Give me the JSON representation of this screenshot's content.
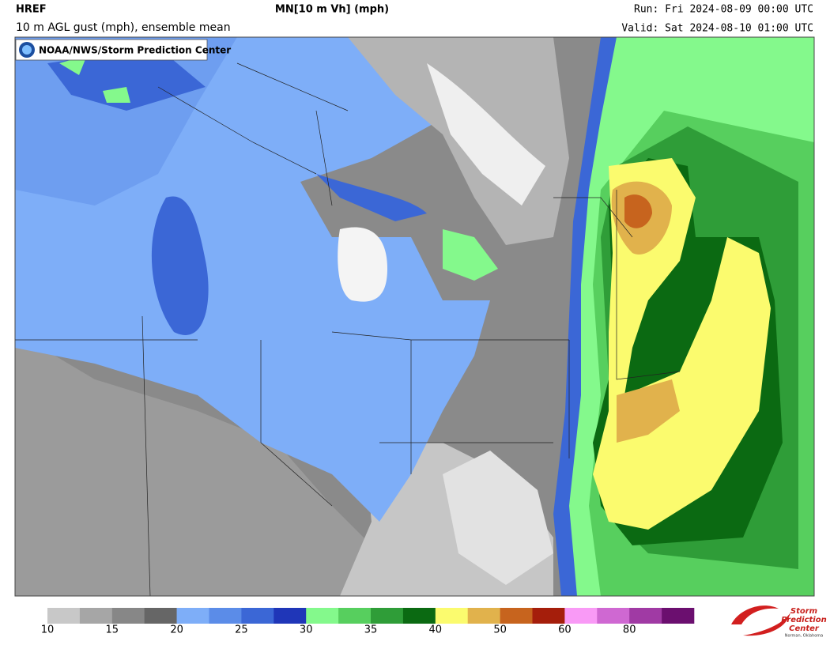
{
  "header": {
    "model": "HREF",
    "subtitle": "10 m AGL gust (mph), ensemble mean",
    "field": "MN[10 m Vh] (mph)",
    "run": "Run: Fri 2024-08-09 00:00 UTC",
    "valid": "Valid: Sat 2024-08-10 01:00 UTC"
  },
  "badge": "NOAA/NWS/Storm Prediction Center",
  "colorbar": {
    "colors": [
      "#c8c8c8",
      "#a6a6a6",
      "#878787",
      "#666666",
      "#7eaef8",
      "#5b8ce8",
      "#3b67d6",
      "#1f36b8",
      "#84f98c",
      "#57cf5e",
      "#2f9d38",
      "#0b6a12",
      "#fbfb6e",
      "#e1b24c",
      "#c7641e",
      "#a51e0b",
      "#f99af6",
      "#cf68d2",
      "#a03aa4",
      "#6b0f6f"
    ],
    "labels": [
      10,
      null,
      15,
      null,
      20,
      null,
      25,
      null,
      30,
      null,
      35,
      null,
      40,
      null,
      50,
      null,
      60,
      null,
      80,
      null,
      null
    ]
  },
  "spc_logo": {
    "lines": [
      "Storm",
      "Prediction",
      "Center"
    ],
    "place": "Norman, Oklahoma"
  }
}
